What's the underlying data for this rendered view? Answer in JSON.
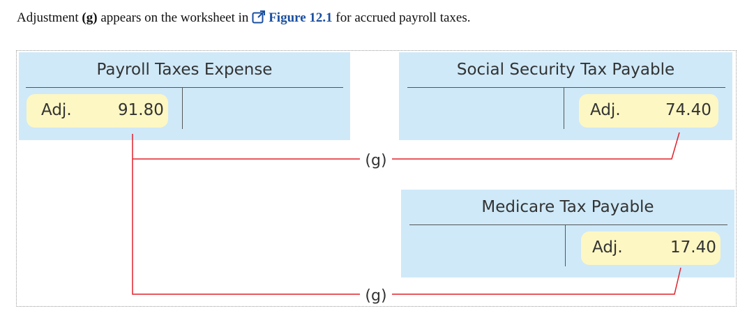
{
  "intro": {
    "prefix": "Adjustment ",
    "adjustment_ref": "(g)",
    "middle": " appears on the worksheet in ",
    "figure_link": "Figure 12.1",
    "suffix": " for accrued payroll taxes."
  },
  "accounts": {
    "payroll_taxes_expense": {
      "title": "Payroll Taxes Expense",
      "side": "debit",
      "label": "Adj.",
      "amount": "91.80"
    },
    "social_security_tax_payable": {
      "title": "Social Security Tax Payable",
      "side": "credit",
      "label": "Adj.",
      "amount": "74.40"
    },
    "medicare_tax_payable": {
      "title": "Medicare Tax Payable",
      "side": "credit",
      "label": "Adj.",
      "amount": "17.40"
    }
  },
  "connectors": {
    "label_top": "(g)",
    "label_bottom": "(g)",
    "color": "#e0202a"
  },
  "colors": {
    "panel": "#cfe9f8",
    "pill": "#fdf7c3",
    "link": "#1a4fa0"
  }
}
